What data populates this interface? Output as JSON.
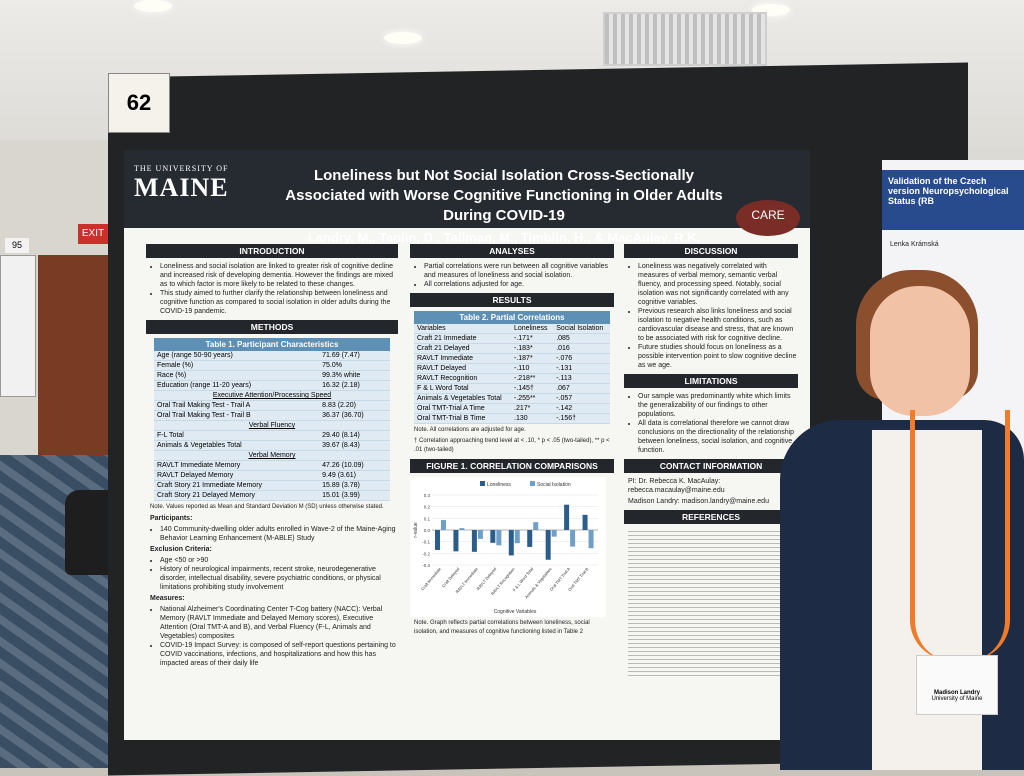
{
  "board_number": "62",
  "side_board_number": "95",
  "exit_sign": "EXIT",
  "poster": {
    "university_top": "THE UNIVERSITY OF",
    "university": "MAINE",
    "title": "Loneliness but Not Social Isolation Cross-Sectionally Associated with Worse Cognitive Functioning in Older Adults During COVID-19",
    "authors": "Landry, M., Taplin, D., Tallman, M., Timblin, H., & MacAulay, R.K.",
    "care_logo": "CARE",
    "intro_heading": "INTRODUCTION",
    "intro_bullets": [
      "Loneliness and social isolation are linked to greater risk of cognitive decline and increased risk of developing dementia. However the findings are mixed as to which factor is more likely to be related to these changes.",
      "This study aimed to further clarify the relationship between loneliness and cognitive function as compared to social isolation in older adults during the COVID-19 pandemic."
    ],
    "methods_heading": "METHODS",
    "table1": {
      "title": "Table 1. Participant Characteristics",
      "rows": [
        {
          "label": "Age (range 50-90 years)",
          "value": "71.69 (7.47)"
        },
        {
          "label": "Female (%)",
          "value": "75.0%"
        },
        {
          "label": "Race (%)",
          "value": "99.3% white"
        },
        {
          "label": "Education (range 11-20 years)",
          "value": "16.32 (2.18)"
        }
      ],
      "sec1": "Executive Attention/Processing Speed",
      "sec1_rows": [
        {
          "label": "Oral Trail Making Test - Trail A",
          "value": "8.83 (2.20)"
        },
        {
          "label": "Oral Trail Making Test - Trail B",
          "value": "36.37 (36.70)"
        }
      ],
      "sec2": "Verbal Fluency",
      "sec2_rows": [
        {
          "label": "F-L Total",
          "value": "29.40 (8.14)"
        },
        {
          "label": "Animals & Vegetables Total",
          "value": "39.67 (8.43)"
        }
      ],
      "sec3": "Verbal Memory",
      "sec3_rows": [
        {
          "label": "RAVLT Immediate Memory",
          "value": "47.26 (10.09)"
        },
        {
          "label": "RAVLT Delayed Memory",
          "value": "9.49 (3.61)"
        },
        {
          "label": "Craft Story 21 Immediate Memory",
          "value": "15.89 (3.78)"
        },
        {
          "label": "Craft Story 21 Delayed Memory",
          "value": "15.01 (3.99)"
        }
      ],
      "note": "Note. Values reported as Mean and Standard Deviation M (SD) unless otherwise stated."
    },
    "participants_h": "Participants:",
    "participants": "140 Community-dwelling older adults enrolled in Wave-2 of the Maine-Aging Behavior Learning Enhancement (M-ABLE) Study",
    "exclusion_h": "Exclusion Criteria:",
    "exclusion": [
      "Age <50 or >90",
      "History of neurological impairments, recent stroke, neurodegenerative disorder, intellectual disability, severe psychiatric conditions, or physical limitations prohibiting study involvement"
    ],
    "measures_h": "Measures:",
    "measures": [
      "National Alzheimer's Coordinating Center T-Cog battery (NACC): Verbal Memory (RAVLT Immediate and Delayed Memory scores), Executive Attention (Oral TMT-A and B), and Verbal Fluency (F-L, Animals and Vegetables) composites",
      "COVID-19 Impact Survey: is composed of self-report questions pertaining to COVID vaccinations, infections, and hospitalizations and how this has impacted areas of their daily life"
    ],
    "analyses_heading": "ANALYSES",
    "analyses": [
      "Partial correlations were run between all cognitive variables and measures of loneliness and social isolation.",
      "All correlations adjusted for age."
    ],
    "results_heading": "RESULTS",
    "table2": {
      "title": "Table 2. Partial Correlations",
      "headers": [
        "Variables",
        "Loneliness",
        "Social Isolation"
      ],
      "rows": [
        [
          "Craft 21 Immediate",
          "-.171*",
          ".085"
        ],
        [
          "Craft 21 Delayed",
          "-.183*",
          ".016"
        ],
        [
          "RAVLT Immediate",
          "-.187*",
          "-.076"
        ],
        [
          "RAVLT Delayed",
          "-.110",
          "-.131"
        ],
        [
          "RAVLT Recognition",
          "-.218**",
          "-.113"
        ],
        [
          "F & L Word Total",
          "-.145†",
          ".067"
        ],
        [
          "Animals & Vegetables Total",
          "-.255**",
          "-.057"
        ],
        [
          "Oral TMT-Trial A Time",
          ".217*",
          "-.142"
        ],
        [
          "Oral TMT-Trial B Time",
          ".130",
          "-.156†"
        ]
      ],
      "note1": "Note. All correlations are adjusted for age.",
      "note2": "† Correlation approaching trend level at < .10, * p < .05 (two-tailed), ** p < .01 (two-tailed)"
    },
    "figure_heading": "FIGURE 1. CORRELATION COMPARISONS",
    "figure_note": "Note. Graph reflects partial correlations between loneliness, social isolation, and measures of cognitive functioning listed in Table 2",
    "discussion_heading": "DISCUSSION",
    "discussion": [
      "Loneliness was negatively correlated with measures of verbal memory, semantic verbal fluency, and processing speed. Notably, social isolation was not significantly correlated with any cognitive variables.",
      "Previous research also links loneliness and social isolation to negative health conditions, such as cardiovascular disease and stress, that are known to be associated with risk for cognitive decline.",
      "Future studies should focus on loneliness as a possible intervention point to slow cognitive decline as we age."
    ],
    "limitations_heading": "LIMITATIONS",
    "limitations": [
      "Our sample was predominantly white which limits the generalizability of our findings to other populations.",
      "All data is correlational therefore we cannot draw conclusions on the directionality of the relationship between loneliness, social isolation, and cognitive function."
    ],
    "contact_heading": "CONTACT INFORMATION",
    "contact": [
      "PI: Dr. Rebecca K. MacAulay: rebecca.macaulay@maine.edu",
      "Madison Landry: madison.landry@maine.edu"
    ],
    "references_heading": "REFERENCES"
  },
  "chart_data": {
    "type": "bar",
    "title": "",
    "categories": [
      "Craft Immediate",
      "Craft Delayed",
      "RAVLT Immediate",
      "RAVLT Delayed",
      "RAVLT Recognition",
      "F & L Word Total",
      "Animals & Vegetables",
      "Oral TMT Trial A",
      "Oral TMT Trial B"
    ],
    "series": [
      {
        "name": "Loneliness",
        "values": [
          -0.171,
          -0.183,
          -0.187,
          -0.11,
          -0.218,
          -0.145,
          -0.255,
          0.217,
          0.13
        ]
      },
      {
        "name": "Social Isolation",
        "values": [
          0.085,
          0.016,
          -0.076,
          -0.131,
          -0.113,
          0.067,
          -0.057,
          -0.142,
          -0.156
        ]
      }
    ],
    "xlabel": "Cognitive Variables",
    "ylabel": "r-value",
    "ylim": [
      -0.3,
      0.3
    ],
    "legend": "top",
    "colors": {
      "Loneliness": "#2b5d8a",
      "Social Isolation": "#6f9fc6"
    }
  },
  "right_poster": {
    "title": "Validation of the Czech version Neuropsychological Status (RB",
    "author": "Lenka Krámská"
  },
  "name_badge": {
    "name": "Madison Landry",
    "affiliation": "University of Maine"
  }
}
